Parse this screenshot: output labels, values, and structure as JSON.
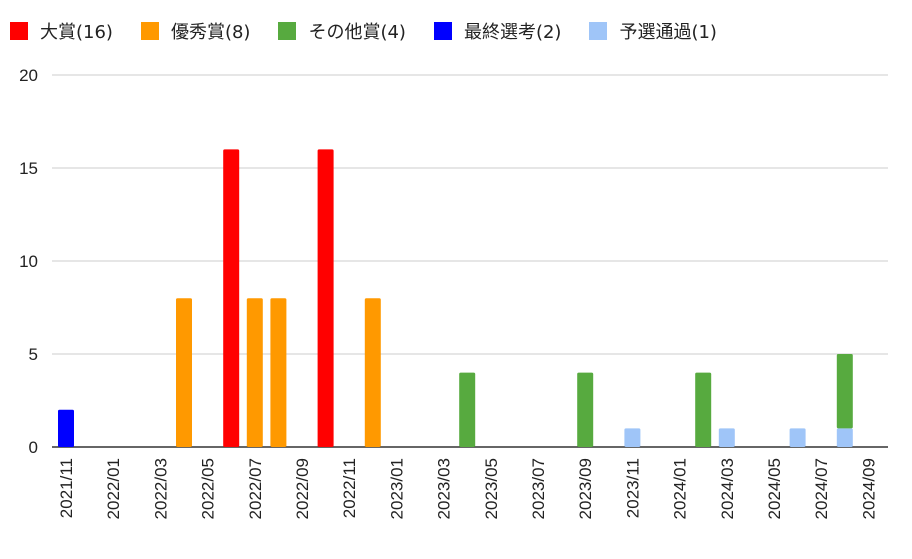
{
  "chart_data": {
    "type": "bar",
    "stacked": true,
    "ylim": [
      0,
      20
    ],
    "y_ticks": [
      0,
      5,
      10,
      15,
      20
    ],
    "grid": true,
    "legend_position": "top",
    "categories": [
      "2021/11",
      "2021/12",
      "2022/01",
      "2022/02",
      "2022/03",
      "2022/04",
      "2022/05",
      "2022/06",
      "2022/07",
      "2022/08",
      "2022/09",
      "2022/10",
      "2022/11",
      "2022/12",
      "2023/01",
      "2023/02",
      "2023/03",
      "2023/04",
      "2023/05",
      "2023/06",
      "2023/07",
      "2023/08",
      "2023/09",
      "2023/10",
      "2023/11",
      "2023/12",
      "2024/01",
      "2024/02",
      "2024/03",
      "2024/04",
      "2024/05",
      "2024/06",
      "2024/07",
      "2024/08",
      "2024/09"
    ],
    "x_tick_labels": [
      "2021/11",
      "2022/01",
      "2022/03",
      "2022/05",
      "2022/07",
      "2022/09",
      "2022/11",
      "2023/01",
      "2023/03",
      "2023/05",
      "2023/07",
      "2023/09",
      "2023/11",
      "2024/01",
      "2024/03",
      "2024/05",
      "2024/07",
      "2024/09"
    ],
    "series": [
      {
        "name": "大賞(16)",
        "color": "#ff0000",
        "values": [
          0,
          0,
          0,
          0,
          0,
          0,
          0,
          16,
          0,
          0,
          0,
          16,
          0,
          0,
          0,
          0,
          0,
          0,
          0,
          0,
          0,
          0,
          0,
          0,
          0,
          0,
          0,
          0,
          0,
          0,
          0,
          0,
          0,
          0,
          0
        ]
      },
      {
        "name": "優秀賞(8)",
        "color": "#ff9900",
        "values": [
          0,
          0,
          0,
          0,
          0,
          8,
          0,
          0,
          8,
          8,
          0,
          0,
          0,
          8,
          0,
          0,
          0,
          0,
          0,
          0,
          0,
          0,
          0,
          0,
          0,
          0,
          0,
          0,
          0,
          0,
          0,
          0,
          0,
          0,
          0
        ]
      },
      {
        "name": "その他賞(4)",
        "color": "#57aa3f",
        "values": [
          0,
          0,
          0,
          0,
          0,
          0,
          0,
          0,
          0,
          0,
          0,
          0,
          0,
          0,
          0,
          0,
          0,
          4,
          0,
          0,
          0,
          0,
          4,
          0,
          0,
          0,
          0,
          4,
          0,
          0,
          0,
          0,
          0,
          4,
          0
        ]
      },
      {
        "name": "最終選考(2)",
        "color": "#0000ff",
        "values": [
          2,
          0,
          0,
          0,
          0,
          0,
          0,
          0,
          0,
          0,
          0,
          0,
          0,
          0,
          0,
          0,
          0,
          0,
          0,
          0,
          0,
          0,
          0,
          0,
          0,
          0,
          0,
          0,
          0,
          0,
          0,
          0,
          0,
          0,
          0
        ]
      },
      {
        "name": "予選通過(1)",
        "color": "#9fc5f8",
        "values": [
          0,
          0,
          0,
          0,
          0,
          0,
          0,
          0,
          0,
          0,
          0,
          0,
          0,
          0,
          0,
          0,
          0,
          0,
          0,
          0,
          0,
          0,
          0,
          0,
          1,
          0,
          0,
          0,
          1,
          0,
          0,
          1,
          0,
          1,
          0
        ]
      }
    ]
  }
}
